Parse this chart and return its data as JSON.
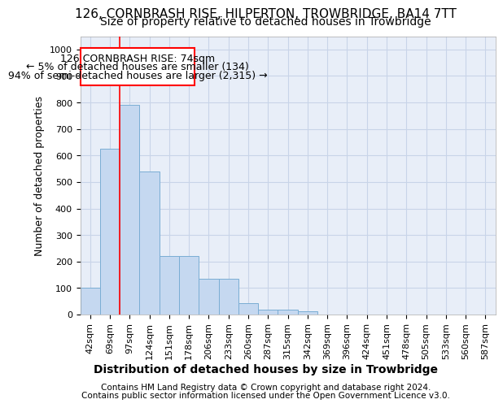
{
  "title": "126, CORNBRASH RISE, HILPERTON, TROWBRIDGE, BA14 7TT",
  "subtitle": "Size of property relative to detached houses in Trowbridge",
  "xlabel": "Distribution of detached houses by size in Trowbridge",
  "ylabel": "Number of detached properties",
  "bar_labels": [
    "42sqm",
    "69sqm",
    "97sqm",
    "124sqm",
    "151sqm",
    "178sqm",
    "206sqm",
    "233sqm",
    "260sqm",
    "287sqm",
    "315sqm",
    "342sqm",
    "369sqm",
    "396sqm",
    "424sqm",
    "451sqm",
    "478sqm",
    "505sqm",
    "533sqm",
    "560sqm",
    "587sqm"
  ],
  "bar_values": [
    100,
    625,
    790,
    540,
    220,
    220,
    135,
    135,
    42,
    17,
    17,
    11,
    0,
    0,
    0,
    0,
    0,
    0,
    0,
    0,
    0
  ],
  "bar_color": "#c5d8f0",
  "bar_edge_color": "#7aadd4",
  "grid_color": "#c8d4e8",
  "background_color": "#e8eef8",
  "ylim": [
    0,
    1050
  ],
  "yticks": [
    0,
    100,
    200,
    300,
    400,
    500,
    600,
    700,
    800,
    900,
    1000
  ],
  "property_label": "126 CORNBRASH RISE: 74sqm",
  "annotation_line1": "← 5% of detached houses are smaller (134)",
  "annotation_line2": "94% of semi-detached houses are larger (2,315) →",
  "vline_bin_index": 1.5,
  "footer_line1": "Contains HM Land Registry data © Crown copyright and database right 2024.",
  "footer_line2": "Contains public sector information licensed under the Open Government Licence v3.0.",
  "title_fontsize": 11,
  "subtitle_fontsize": 10,
  "xlabel_fontsize": 10,
  "ylabel_fontsize": 9,
  "tick_fontsize": 8,
  "annotation_fontsize": 9,
  "footer_fontsize": 7.5
}
